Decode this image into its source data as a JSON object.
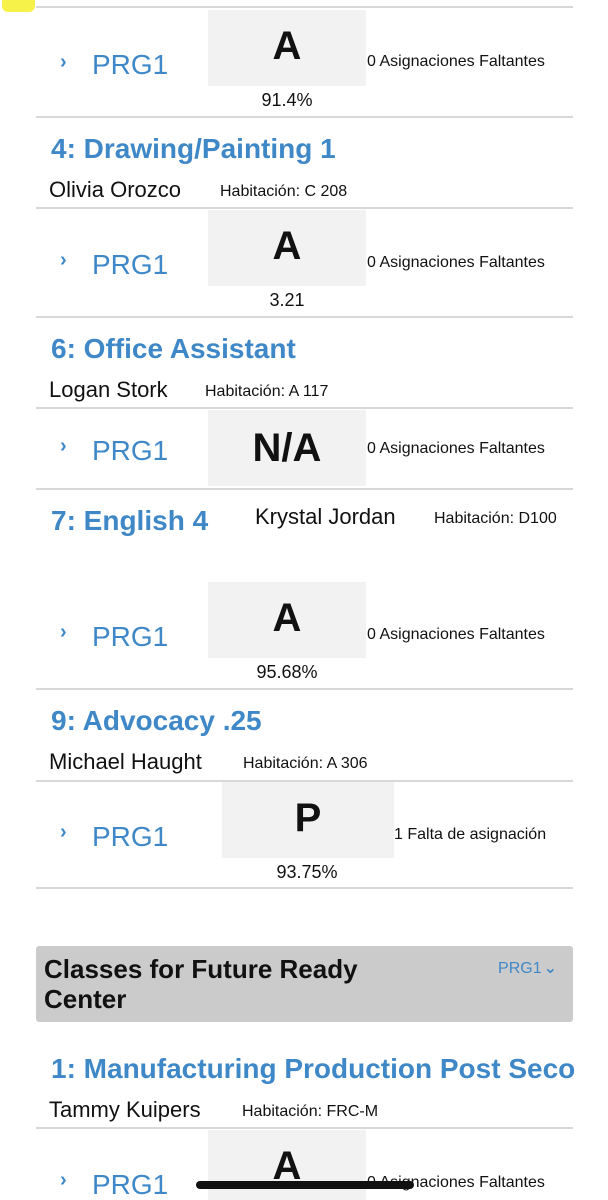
{
  "colors": {
    "link": "#3f88c8",
    "grade_bg": "#f2f2f2",
    "header_bg": "#cbcbcb"
  },
  "icons": {
    "expand": "chevron-right-icon",
    "dropdown": "chevron-down-icon"
  },
  "rows": [
    {
      "term": "PRG1",
      "grade": "A",
      "percent": "91.4%",
      "missing": "0 Asignaciones Faltantes"
    },
    {
      "term": "PRG1",
      "grade": "A",
      "percent": "3.21",
      "missing": "0 Asignaciones Faltantes"
    },
    {
      "term": "PRG1",
      "grade": "N/A",
      "percent": "",
      "missing": "0 Asignaciones Faltantes"
    },
    {
      "term": "PRG1",
      "grade": "A",
      "percent": "95.68%",
      "missing": "0 Asignaciones Faltantes"
    },
    {
      "term": "PRG1",
      "grade": "P",
      "percent": "93.75%",
      "missing": "1 Falta de asignación"
    },
    {
      "term": "PRG1",
      "grade": "A",
      "percent": "",
      "missing": "0 Asignaciones Faltantes"
    }
  ],
  "courses": [
    {
      "title": "4: Drawing/Painting 1",
      "teacher": "Olivia Orozco",
      "room": "Habitación: C 208"
    },
    {
      "title": "6: Office Assistant",
      "teacher": "Logan Stork",
      "room": "Habitación: A 117"
    },
    {
      "title": "7: English 4",
      "teacher": "Krystal Jordan",
      "room": "Habitación: D100"
    },
    {
      "title": "9: Advocacy .25",
      "teacher": "Michael Haught",
      "room": "Habitación: A 306"
    },
    {
      "title": "1: Manufacturing Production Post Seco",
      "teacher": "Tammy Kuipers",
      "room": "Habitación: FRC-M"
    }
  ],
  "section": {
    "title": "Classes for Future Ready Center",
    "term": "PRG1"
  }
}
